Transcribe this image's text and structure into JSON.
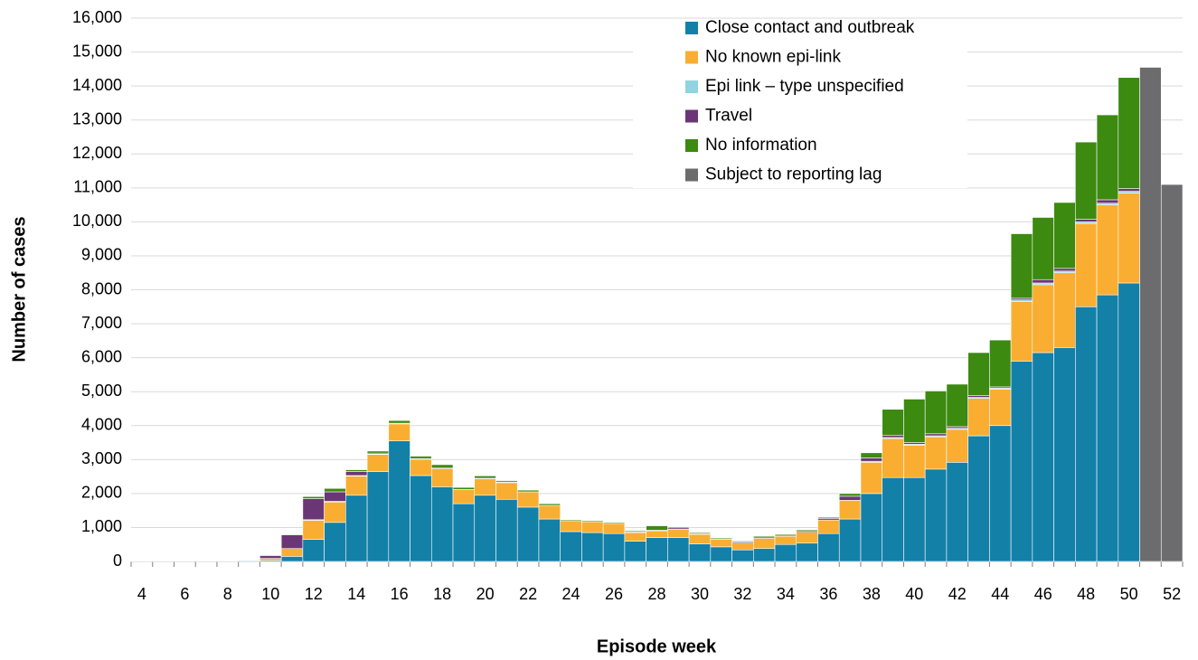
{
  "chart_data": {
    "type": "stacked-bar",
    "x_label": "Episode week",
    "y_label": "Number of cases",
    "categories": [
      4,
      null,
      6,
      null,
      8,
      null,
      10,
      null,
      12,
      null,
      14,
      null,
      16,
      null,
      18,
      null,
      20,
      null,
      22,
      null,
      24,
      null,
      26,
      null,
      28,
      null,
      30,
      null,
      32,
      null,
      34,
      null,
      36,
      null,
      38,
      null,
      40,
      null,
      42,
      null,
      44,
      null,
      46,
      null,
      48,
      null,
      50,
      null,
      52
    ],
    "ylim": [
      0,
      16000
    ],
    "yticks": [
      0,
      {
        "value": 1000,
        "label": "1,000"
      },
      {
        "value": 2000,
        "label": "2,000"
      },
      {
        "value": 3000,
        "label": "3,000"
      },
      {
        "value": 4000,
        "label": "4,000"
      },
      {
        "value": 5000,
        "label": "5,000"
      },
      {
        "value": 6000,
        "label": "6,000"
      },
      {
        "value": 7000,
        "label": "7,000"
      },
      {
        "value": 8000,
        "label": "8,000"
      },
      {
        "value": 9000,
        "label": "9,000"
      },
      {
        "value": 10000,
        "label": "10,000"
      },
      {
        "value": 11000,
        "label": "11,000"
      },
      {
        "value": 12000,
        "label": "12,000"
      },
      {
        "value": 13000,
        "label": "13,000"
      },
      {
        "value": 14000,
        "label": "14,000"
      },
      {
        "value": 15000,
        "label": "15,000"
      },
      {
        "value": 16000,
        "label": "16,000"
      }
    ],
    "grid": true,
    "legend": "top-right",
    "series": [
      {
        "name": "Close contact and outbreak",
        "color": "#1380a8",
        "values": [
          10,
          5,
          10,
          10,
          10,
          20,
          30,
          150,
          650,
          1150,
          1950,
          2650,
          3550,
          2530,
          2200,
          1700,
          1950,
          1830,
          1600,
          1250,
          880,
          850,
          820,
          600,
          700,
          700,
          520,
          430,
          340,
          380,
          500,
          540,
          820,
          1250,
          2000,
          2470,
          2470,
          2720,
          2920,
          3700,
          4000,
          5900,
          6150,
          6300,
          7500,
          7850,
          8200,
          null,
          null
        ]
      },
      {
        "name": "No known epi-link",
        "color": "#f9ae32",
        "values": [
          0,
          0,
          0,
          0,
          0,
          0,
          60,
          230,
          560,
          600,
          560,
          500,
          500,
          480,
          530,
          420,
          480,
          490,
          450,
          400,
          320,
          320,
          300,
          250,
          200,
          250,
          280,
          220,
          200,
          300,
          240,
          320,
          400,
          550,
          920,
          1150,
          950,
          950,
          970,
          1100,
          1070,
          1750,
          2000,
          2200,
          2450,
          2650,
          2650,
          null,
          null
        ]
      },
      {
        "name": "Epi link – type unspecified",
        "color": "#8fd4e0",
        "values": [
          0,
          0,
          0,
          0,
          0,
          0,
          0,
          0,
          20,
          20,
          20,
          10,
          0,
          0,
          0,
          0,
          0,
          0,
          0,
          0,
          0,
          0,
          0,
          0,
          0,
          0,
          0,
          0,
          0,
          0,
          0,
          0,
          0,
          0,
          30,
          30,
          30,
          30,
          30,
          30,
          30,
          50,
          50,
          50,
          50,
          50,
          50,
          null,
          null
        ]
      },
      {
        "name": "Travel",
        "color": "#6b3676",
        "values": [
          0,
          0,
          0,
          0,
          0,
          0,
          80,
          400,
          620,
          280,
          120,
          30,
          20,
          20,
          20,
          0,
          20,
          20,
          0,
          0,
          0,
          0,
          0,
          20,
          20,
          40,
          20,
          20,
          30,
          40,
          30,
          40,
          50,
          120,
          100,
          70,
          50,
          60,
          50,
          60,
          40,
          50,
          100,
          80,
          80,
          100,
          80,
          null,
          null
        ]
      },
      {
        "name": "No information",
        "color": "#3c8a10",
        "values": [
          0,
          0,
          0,
          0,
          0,
          0,
          20,
          20,
          60,
          100,
          50,
          60,
          80,
          70,
          100,
          60,
          70,
          40,
          50,
          50,
          30,
          30,
          30,
          30,
          130,
          30,
          30,
          30,
          30,
          30,
          30,
          30,
          30,
          80,
          150,
          760,
          1280,
          1260,
          1250,
          1260,
          1380,
          1900,
          1830,
          1940,
          2270,
          2500,
          3270,
          null,
          null
        ]
      },
      {
        "name": "Subject to reporting lag",
        "color": "#6c6c6e",
        "values": [
          null,
          null,
          null,
          null,
          null,
          null,
          null,
          null,
          null,
          null,
          null,
          null,
          null,
          null,
          null,
          null,
          null,
          null,
          null,
          null,
          null,
          null,
          null,
          null,
          null,
          null,
          null,
          null,
          null,
          null,
          null,
          null,
          null,
          null,
          null,
          null,
          null,
          null,
          null,
          null,
          null,
          null,
          null,
          null,
          null,
          null,
          null,
          14550,
          11100
        ]
      }
    ]
  }
}
